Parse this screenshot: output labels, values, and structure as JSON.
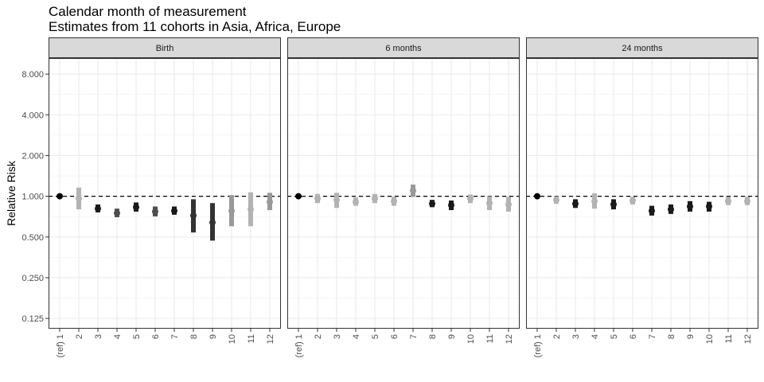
{
  "chart_data": {
    "type": "scatter",
    "title": "Calendar month of measurement",
    "subtitle": "Estimates from 11 cohorts in Asia, Africa, Europe",
    "ylabel": "Relative Risk",
    "xlabel": "",
    "y_scale": "log2",
    "ylim": [
      0.105,
      10.5
    ],
    "y_ticks": [
      0.125,
      0.25,
      0.5,
      1,
      2,
      4,
      8
    ],
    "y_tick_labels": [
      "0.125",
      "0.250",
      "0.500",
      "1.000",
      "2.000",
      "4.000",
      "8.000"
    ],
    "reference_line": 1,
    "grid": true,
    "categories": [
      "(ref) 1",
      "2",
      "3",
      "4",
      "5",
      "6",
      "7",
      "8",
      "9",
      "10",
      "11",
      "12"
    ],
    "panels": [
      {
        "name": "Birth",
        "points": [
          {
            "month": "(ref) 1",
            "rr": 1.0,
            "lower": 1.0,
            "upper": 1.0,
            "shade": "#000000"
          },
          {
            "month": "2",
            "rr": 0.96,
            "lower": 0.8,
            "upper": 1.16,
            "shade": "#b3b3b3"
          },
          {
            "month": "3",
            "rr": 0.81,
            "lower": 0.76,
            "upper": 0.87,
            "shade": "#1a1a1a"
          },
          {
            "month": "4",
            "rr": 0.75,
            "lower": 0.7,
            "upper": 0.81,
            "shade": "#4d4d4d"
          },
          {
            "month": "5",
            "rr": 0.83,
            "lower": 0.77,
            "upper": 0.9,
            "shade": "#1a1a1a"
          },
          {
            "month": "6",
            "rr": 0.77,
            "lower": 0.71,
            "upper": 0.84,
            "shade": "#4d4d4d"
          },
          {
            "month": "7",
            "rr": 0.78,
            "lower": 0.73,
            "upper": 0.84,
            "shade": "#1a1a1a"
          },
          {
            "month": "8",
            "rr": 0.72,
            "lower": 0.54,
            "upper": 0.95,
            "shade": "#333333"
          },
          {
            "month": "9",
            "rr": 0.64,
            "lower": 0.47,
            "upper": 0.89,
            "shade": "#333333"
          },
          {
            "month": "10",
            "rr": 0.78,
            "lower": 0.6,
            "upper": 1.02,
            "shade": "#999999"
          },
          {
            "month": "11",
            "rr": 0.8,
            "lower": 0.6,
            "upper": 1.07,
            "shade": "#b3b3b3"
          },
          {
            "month": "12",
            "rr": 0.91,
            "lower": 0.79,
            "upper": 1.06,
            "shade": "#999999"
          }
        ]
      },
      {
        "name": "6 months",
        "points": [
          {
            "month": "(ref) 1",
            "rr": 1.0,
            "lower": 1.0,
            "upper": 1.0,
            "shade": "#000000"
          },
          {
            "month": "2",
            "rr": 0.96,
            "lower": 0.89,
            "upper": 1.04,
            "shade": "#b3b3b3"
          },
          {
            "month": "3",
            "rr": 0.94,
            "lower": 0.82,
            "upper": 1.06,
            "shade": "#b3b3b3"
          },
          {
            "month": "4",
            "rr": 0.91,
            "lower": 0.85,
            "upper": 0.98,
            "shade": "#b3b3b3"
          },
          {
            "month": "5",
            "rr": 0.96,
            "lower": 0.89,
            "upper": 1.04,
            "shade": "#b3b3b3"
          },
          {
            "month": "6",
            "rr": 0.92,
            "lower": 0.85,
            "upper": 0.99,
            "shade": "#b3b3b3"
          },
          {
            "month": "7",
            "rr": 1.1,
            "lower": 0.99,
            "upper": 1.22,
            "shade": "#999999"
          },
          {
            "month": "8",
            "rr": 0.88,
            "lower": 0.83,
            "upper": 0.94,
            "shade": "#1a1a1a"
          },
          {
            "month": "9",
            "rr": 0.86,
            "lower": 0.79,
            "upper": 0.93,
            "shade": "#1a1a1a"
          },
          {
            "month": "10",
            "rr": 0.96,
            "lower": 0.89,
            "upper": 1.03,
            "shade": "#b3b3b3"
          },
          {
            "month": "11",
            "rr": 0.89,
            "lower": 0.79,
            "upper": 1.0,
            "shade": "#b3b3b3"
          },
          {
            "month": "12",
            "rr": 0.87,
            "lower": 0.77,
            "upper": 0.99,
            "shade": "#b3b3b3"
          }
        ]
      },
      {
        "name": "24 months",
        "points": [
          {
            "month": "(ref) 1",
            "rr": 1.0,
            "lower": 1.0,
            "upper": 1.0,
            "shade": "#000000"
          },
          {
            "month": "2",
            "rr": 0.94,
            "lower": 0.88,
            "upper": 1.0,
            "shade": "#b3b3b3"
          },
          {
            "month": "3",
            "rr": 0.88,
            "lower": 0.82,
            "upper": 0.95,
            "shade": "#1a1a1a"
          },
          {
            "month": "4",
            "rr": 0.92,
            "lower": 0.81,
            "upper": 1.05,
            "shade": "#b3b3b3"
          },
          {
            "month": "5",
            "rr": 0.87,
            "lower": 0.8,
            "upper": 0.95,
            "shade": "#1a1a1a"
          },
          {
            "month": "6",
            "rr": 0.93,
            "lower": 0.87,
            "upper": 0.99,
            "shade": "#b3b3b3"
          },
          {
            "month": "7",
            "rr": 0.78,
            "lower": 0.72,
            "upper": 0.85,
            "shade": "#1a1a1a"
          },
          {
            "month": "8",
            "rr": 0.8,
            "lower": 0.74,
            "upper": 0.87,
            "shade": "#1a1a1a"
          },
          {
            "month": "9",
            "rr": 0.84,
            "lower": 0.77,
            "upper": 0.92,
            "shade": "#1a1a1a"
          },
          {
            "month": "10",
            "rr": 0.84,
            "lower": 0.77,
            "upper": 0.91,
            "shade": "#1a1a1a"
          },
          {
            "month": "11",
            "rr": 0.92,
            "lower": 0.86,
            "upper": 0.99,
            "shade": "#b3b3b3"
          },
          {
            "month": "12",
            "rr": 0.92,
            "lower": 0.86,
            "upper": 0.99,
            "shade": "#b3b3b3"
          }
        ]
      }
    ]
  }
}
